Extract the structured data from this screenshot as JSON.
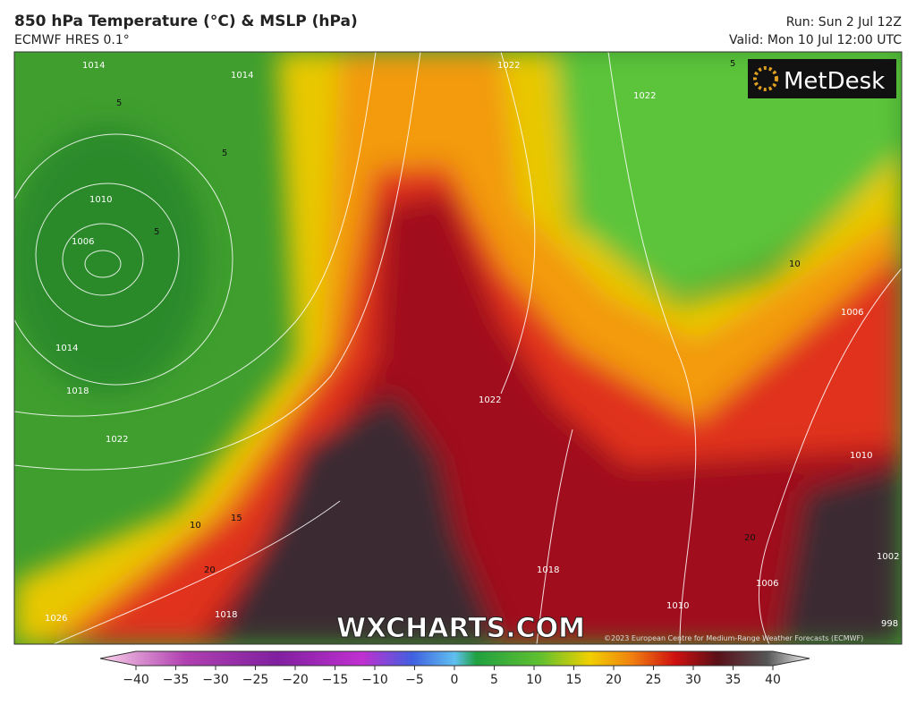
{
  "header": {
    "title": "850 hPa Temperature (°C) & MSLP (hPa)",
    "subtitle": "ECMWF HRES 0.1°",
    "run": "Run: Sun 2 Jul 12Z",
    "valid": "Valid: Mon 10 Jul 12:00 UTC"
  },
  "logo": "MetDesk",
  "watermark": "WXCHARTS.COM",
  "copyright": "©2023 European Centre for Medium-Range Weather Forecasts (ECMWF)",
  "map": {
    "isobar_labels": [
      "1014",
      "1014",
      "1010",
      "1006",
      "1014",
      "1018",
      "1022",
      "1026",
      "1018",
      "1022",
      "1022",
      "1018",
      "1010",
      "1006",
      "1010",
      "1006",
      "1022",
      "1002",
      "998"
    ],
    "temperature_labels": [
      "5",
      "5",
      "5",
      "5",
      "10",
      "15",
      "20",
      "10",
      "20"
    ]
  },
  "colorbar": {
    "ticks": [
      "−40",
      "−35",
      "−30",
      "−25",
      "−20",
      "−15",
      "−10",
      "−5",
      "0",
      "5",
      "10",
      "15",
      "20",
      "25",
      "30",
      "35",
      "40"
    ]
  }
}
